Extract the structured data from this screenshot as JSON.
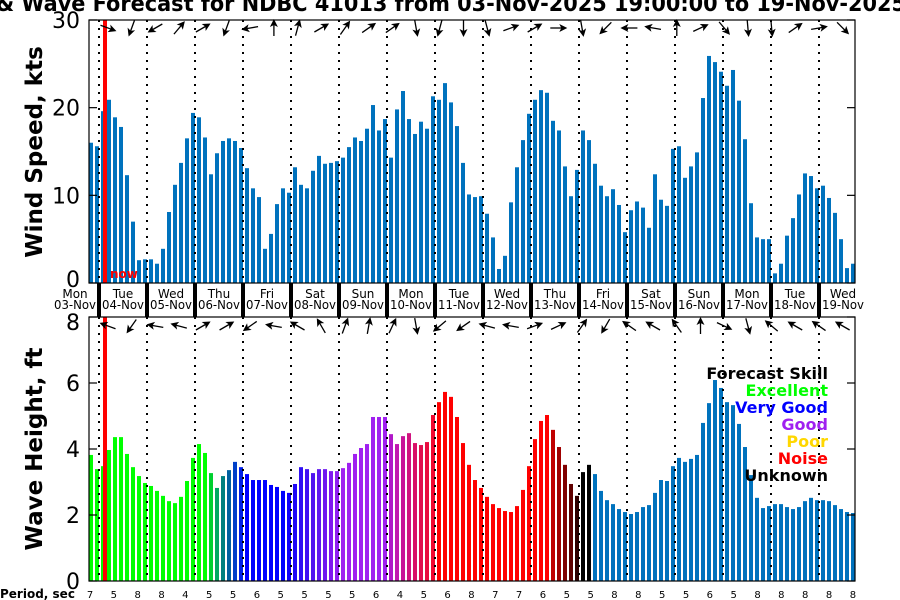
{
  "title": "& Wave Forecast for NDBC 41013 from 03-Nov-2025 19:00:00 to 19-Nov-2025",
  "now_label": "now",
  "period_label": "Period, sec",
  "chart_data": [
    {
      "type": "bar",
      "name": "wind",
      "ylabel": "Wind Speed, kts",
      "ylim": [
        0,
        30
      ],
      "yticks": [
        0,
        10,
        20,
        30
      ],
      "interval_hours": 3,
      "start": "03-Nov-2025 19:00:00",
      "color": "#0072bd",
      "values": [
        16.0,
        15.6,
        19.6,
        20.9,
        18.9,
        17.8,
        12.3,
        7.0,
        2.6,
        2.7,
        2.7,
        2.2,
        3.9,
        8.1,
        11.2,
        13.7,
        16.5,
        19.4,
        18.9,
        16.6,
        12.4,
        14.8,
        16.2,
        16.5,
        16.2,
        15.4,
        13.1,
        10.8,
        9.8,
        3.9,
        5.6,
        9.0,
        10.8,
        10.3,
        13.2,
        11.2,
        10.8,
        12.8,
        14.5,
        13.6,
        13.7,
        13.9,
        14.3,
        15.5,
        16.6,
        16.2,
        17.6,
        20.3,
        17.4,
        18.7,
        14.3,
        19.8,
        21.9,
        18.7,
        17.0,
        18.4,
        17.6,
        21.3,
        20.9,
        22.8,
        20.6,
        17.9,
        13.7,
        10.1,
        9.8,
        9.9,
        7.9,
        5.2,
        1.6,
        3.1,
        9.2,
        13.2,
        16.3,
        19.3,
        20.9,
        22.0,
        21.7,
        18.5,
        17.4,
        13.3,
        9.9,
        12.9,
        17.4,
        16.3,
        13.6,
        11.1,
        9.9,
        10.7,
        8.9,
        5.8,
        8.3,
        9.3,
        8.6,
        6.3,
        12.4,
        9.5,
        8.8,
        15.3,
        15.6,
        12.0,
        13.3,
        14.9,
        21.1,
        25.9,
        25.2,
        24.1,
        22.5,
        24.3,
        20.8,
        16.4,
        9.1,
        5.2,
        5.0,
        5.0,
        1.1,
        2.2,
        5.4,
        7.4,
        10.1,
        12.5,
        12.2,
        10.8,
        11.1,
        9.7,
        8.0,
        5.0,
        1.7,
        2.2
      ],
      "direction_arrows_deg": [
        110,
        200,
        240,
        40,
        60,
        200,
        260,
        0,
        15,
        60,
        35,
        55,
        55,
        170,
        195,
        180,
        165,
        70,
        60,
        90,
        170,
        225,
        270,
        280,
        0,
        65,
        140,
        175,
        175,
        55,
        80,
        135
      ]
    },
    {
      "type": "bar",
      "name": "wave",
      "ylabel": "Wave Height, ft",
      "ylim": [
        0,
        8
      ],
      "yticks": [
        0,
        2,
        4,
        6,
        8
      ],
      "interval_hours": 3,
      "values": [
        3.82,
        3.39,
        3.48,
        3.97,
        4.36,
        4.36,
        3.85,
        3.45,
        3.18,
        2.97,
        2.88,
        2.73,
        2.58,
        2.42,
        2.36,
        2.55,
        3.03,
        3.73,
        4.15,
        3.88,
        3.27,
        2.82,
        3.18,
        3.36,
        3.61,
        3.45,
        3.24,
        3.06,
        3.06,
        3.06,
        2.91,
        2.85,
        2.73,
        2.67,
        2.94,
        3.45,
        3.39,
        3.27,
        3.39,
        3.39,
        3.33,
        3.33,
        3.42,
        3.58,
        3.85,
        4.03,
        4.15,
        4.97,
        4.97,
        4.97,
        4.45,
        4.15,
        4.39,
        4.48,
        4.18,
        4.12,
        4.21,
        5.03,
        5.42,
        5.73,
        5.58,
        4.97,
        4.18,
        3.52,
        3.06,
        2.82,
        2.55,
        2.33,
        2.21,
        2.12,
        2.09,
        2.27,
        2.76,
        3.48,
        4.3,
        4.85,
        5.03,
        4.58,
        4.06,
        3.52,
        2.94,
        2.58,
        3.3,
        3.52,
        3.24,
        2.73,
        2.45,
        2.33,
        2.18,
        2.09,
        2.03,
        2.09,
        2.24,
        2.3,
        2.67,
        3.06,
        3.03,
        3.48,
        3.73,
        3.61,
        3.7,
        3.82,
        4.79,
        5.39,
        6.09,
        5.85,
        5.42,
        5.33,
        4.76,
        4.06,
        3.21,
        2.52,
        2.21,
        2.27,
        2.33,
        2.33,
        2.24,
        2.18,
        2.24,
        2.42,
        2.52,
        2.45,
        2.45,
        2.42,
        2.3,
        2.18,
        2.09,
        2.06
      ],
      "colors": [
        "#00ff00",
        "#00ff00",
        "#00ff00",
        "#00ff00",
        "#00ff00",
        "#00ff00",
        "#00ff00",
        "#00ff00",
        "#00ff00",
        "#00ff00",
        "#00ff00",
        "#00ff00",
        "#00ff00",
        "#00ff00",
        "#00ff00",
        "#00ff00",
        "#00ff00",
        "#00ff00",
        "#00ff00",
        "#00ff00",
        "#00d030",
        "#00a860",
        "#008080",
        "#0060a0",
        "#0040c8",
        "#0020e8",
        "#0000ff",
        "#0000ff",
        "#0000ff",
        "#0000ff",
        "#0000ff",
        "#0000ff",
        "#0000ff",
        "#1000fa",
        "#2008f6",
        "#3010f4",
        "#4010f2",
        "#5014f0",
        "#6018f0",
        "#7018f0",
        "#8018f0",
        "#9020f0",
        "#a020f0",
        "#a020f0",
        "#a020f0",
        "#a020f0",
        "#a020f0",
        "#a020f0",
        "#a020f0",
        "#a020f0",
        "#b018c8",
        "#c018b0",
        "#c81498",
        "#d01480",
        "#d81068",
        "#e01050",
        "#e80c40",
        "#f00830",
        "#ff0000",
        "#ff0000",
        "#ff0000",
        "#ff0000",
        "#ff0000",
        "#ff0000",
        "#ff0000",
        "#ff0000",
        "#ff0000",
        "#ff0000",
        "#ff0000",
        "#ff0000",
        "#ff0000",
        "#ff0000",
        "#ff0000",
        "#ff0000",
        "#ff0000",
        "#ff0000",
        "#ff0000",
        "#c00000",
        "#a00000",
        "#800000",
        "#600000",
        "#300000",
        "#000000",
        "#000000",
        "#0072bd",
        "#0072bd",
        "#0072bd",
        "#0072bd",
        "#0072bd",
        "#0072bd",
        "#0072bd",
        "#0072bd",
        "#0072bd",
        "#0072bd",
        "#0072bd",
        "#0072bd",
        "#0072bd",
        "#0072bd",
        "#0072bd",
        "#0072bd",
        "#0072bd",
        "#0072bd",
        "#0072bd",
        "#0072bd",
        "#0072bd",
        "#0072bd",
        "#0072bd",
        "#0072bd",
        "#0072bd",
        "#0072bd",
        "#0072bd",
        "#0072bd",
        "#0072bd",
        "#0072bd",
        "#0072bd",
        "#0072bd",
        "#0072bd",
        "#0072bd",
        "#0072bd",
        "#0072bd",
        "#0072bd",
        "#0072bd",
        "#0072bd",
        "#0072bd",
        "#0072bd",
        "#0072bd",
        "#0072bd",
        "#0072bd"
      ],
      "direction_arrows_deg": [
        290,
        215,
        280,
        285,
        60,
        60,
        235,
        280,
        300,
        330,
        20,
        10,
        25,
        170,
        230,
        235,
        285,
        280,
        70,
        65,
        35,
        210,
        305,
        300,
        325,
        0,
        115,
        165,
        310,
        300,
        305,
        300
      ],
      "legend": {
        "title": "Forecast Skill",
        "entries": [
          {
            "label": "Excellent",
            "color": "#00ff00"
          },
          {
            "label": "Very Good",
            "color": "#0000ff"
          },
          {
            "label": "Good",
            "color": "#a020f0"
          },
          {
            "label": "Poor",
            "color": "#ffd700"
          },
          {
            "label": "Noise",
            "color": "#ff0000"
          },
          {
            "label": "Unknown",
            "color": "#000000"
          }
        ],
        "placement": "top-right"
      }
    }
  ],
  "days": [
    {
      "dow": "Mon",
      "date": "03-Nov"
    },
    {
      "dow": "Tue",
      "date": "04-Nov"
    },
    {
      "dow": "Wed",
      "date": "05-Nov"
    },
    {
      "dow": "Thu",
      "date": "06-Nov"
    },
    {
      "dow": "Fri",
      "date": "07-Nov"
    },
    {
      "dow": "Sat",
      "date": "08-Nov"
    },
    {
      "dow": "Sun",
      "date": "09-Nov"
    },
    {
      "dow": "Mon",
      "date": "10-Nov"
    },
    {
      "dow": "Tue",
      "date": "11-Nov"
    },
    {
      "dow": "Wed",
      "date": "12-Nov"
    },
    {
      "dow": "Thu",
      "date": "13-Nov"
    },
    {
      "dow": "Fri",
      "date": "14-Nov"
    },
    {
      "dow": "Sat",
      "date": "15-Nov"
    },
    {
      "dow": "Sun",
      "date": "16-Nov"
    },
    {
      "dow": "Mon",
      "date": "17-Nov"
    },
    {
      "dow": "Tue",
      "date": "18-Nov"
    },
    {
      "dow": "Wed",
      "date": "19-Nov"
    }
  ],
  "periods": [
    "7",
    "5",
    "8",
    "8",
    "4",
    "5",
    "5",
    "6",
    "5",
    "5",
    "5",
    "5",
    "6",
    "4",
    "5",
    "6",
    "8",
    "7",
    "7",
    "6",
    "5",
    "5",
    "8",
    "8",
    "5",
    "5",
    "6",
    "5",
    "8",
    "8",
    "8",
    "8",
    "8"
  ],
  "now_color": "#ff0000"
}
